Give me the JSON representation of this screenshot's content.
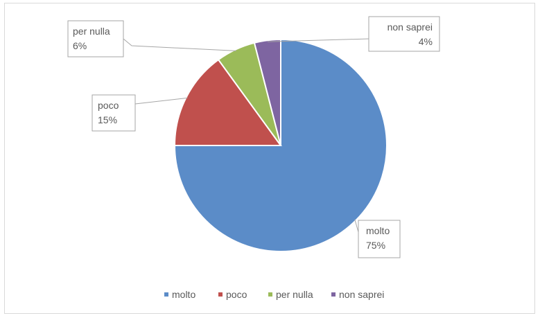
{
  "chart_data": {
    "type": "pie",
    "categories": [
      "molto",
      "poco",
      "per nulla",
      "non saprei"
    ],
    "values": [
      75,
      15,
      6,
      4
    ],
    "value_labels": [
      "75%",
      "15%",
      "6%",
      "4%"
    ],
    "colors": [
      "#5b8cc8",
      "#c0504d",
      "#9bbb59",
      "#7e65a1"
    ],
    "start_angle_deg": 0,
    "direction": "clockwise",
    "legend": {
      "position": "bottom",
      "items": [
        "molto",
        "poco",
        "per nulla",
        "non saprei"
      ]
    }
  }
}
